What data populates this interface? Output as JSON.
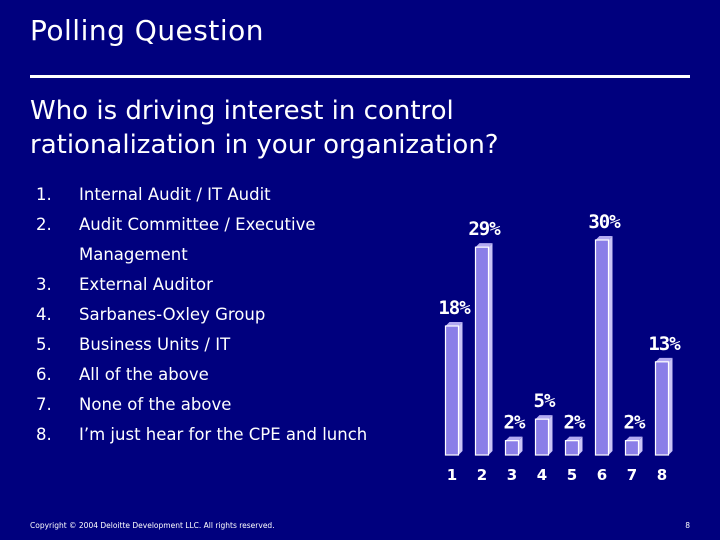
{
  "slide": {
    "title": "Polling Question",
    "question": "Who is driving interest in control rationalization in your organization?",
    "options": [
      {
        "num": "1.",
        "text": "Internal Audit / IT Audit"
      },
      {
        "num": "2.",
        "text": "Audit Committee / Executive Management"
      },
      {
        "num": "3.",
        "text": "External Auditor"
      },
      {
        "num": "4.",
        "text": "Sarbanes-Oxley Group"
      },
      {
        "num": "5.",
        "text": "Business Units / IT"
      },
      {
        "num": "6.",
        "text": "All of the above"
      },
      {
        "num": "7.",
        "text": "None of the above"
      },
      {
        "num": "8.",
        "text": "I’m just hear for the CPE and lunch"
      }
    ],
    "footer": "Copyright © 2004 Deloitte Development LLC. All rights reserved.",
    "page_number": "8"
  },
  "colors": {
    "background": "#00007e",
    "bar_front": "#8a7ee8",
    "bar_side": "#c9c3f6",
    "bar_top": "#b3aaf2"
  },
  "chart_data": {
    "type": "bar",
    "categories": [
      "1",
      "2",
      "3",
      "4",
      "5",
      "6",
      "7",
      "8"
    ],
    "values": [
      18,
      29,
      2,
      5,
      2,
      30,
      2,
      13
    ],
    "value_labels": [
      "18%",
      "29%",
      "2%",
      "5%",
      "2%",
      "30%",
      "2%",
      "13%"
    ],
    "title": "",
    "xlabel": "",
    "ylabel": "",
    "ylim": [
      0,
      30
    ],
    "grid": false,
    "legend": "none"
  }
}
